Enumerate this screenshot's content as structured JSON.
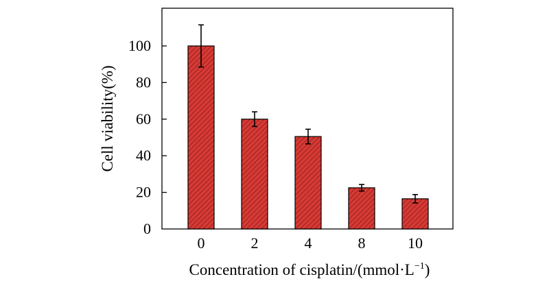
{
  "chart_data": {
    "type": "bar",
    "categories": [
      "0",
      "2",
      "4",
      "8",
      "10"
    ],
    "values": [
      100,
      60,
      50.5,
      22.5,
      16.5
    ],
    "errors": [
      11.5,
      4,
      4,
      1.8,
      2.3
    ],
    "ylim": [
      0,
      115
    ],
    "yticks": [
      0,
      20,
      40,
      60,
      80,
      100
    ],
    "ylabel": "Cell viability(%)",
    "xlabel": {
      "main": "Concentration of cisplatin/(mmol·L",
      "sup": "−1",
      "tail": ")"
    },
    "grid": false,
    "bar_color": "#d63a35",
    "hatch_color": "#8b1a17"
  }
}
